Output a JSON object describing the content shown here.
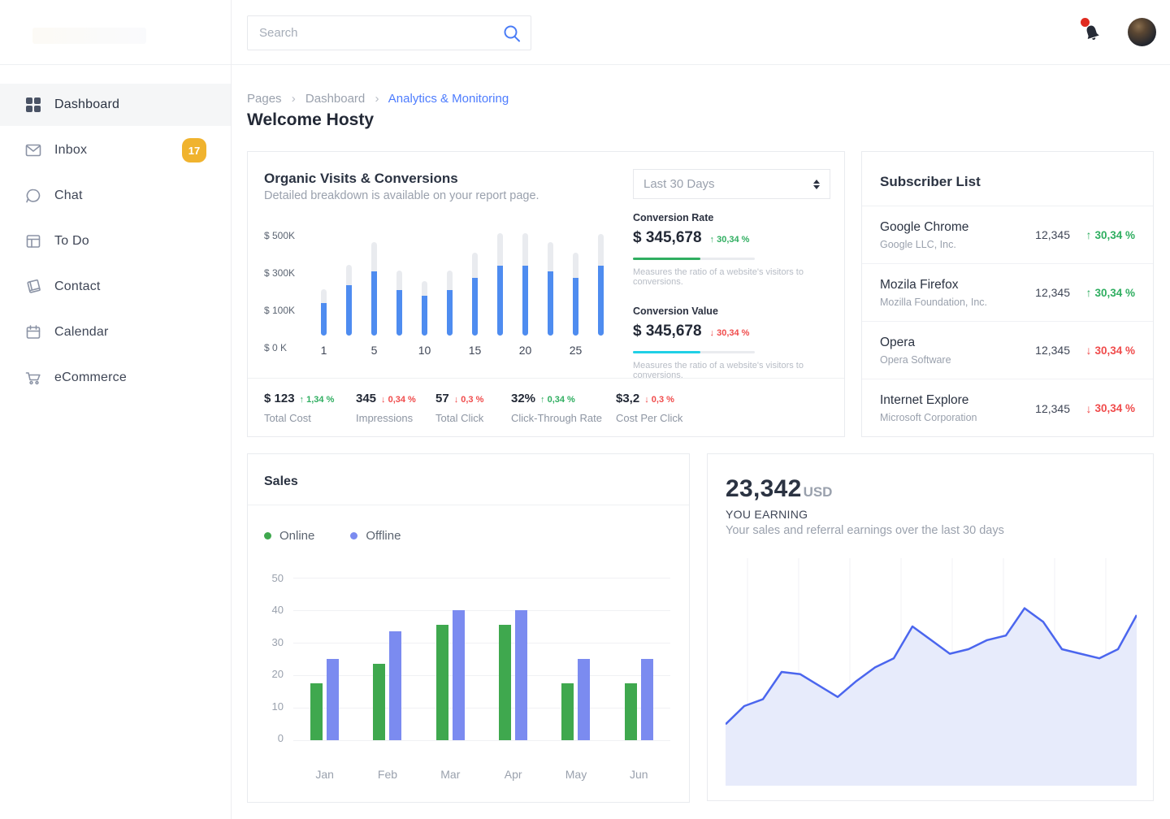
{
  "colors": {
    "accent": "#4d7cfe",
    "positive": "#2fae60",
    "negative": "#f04b4b",
    "badge": "#f0b32e"
  },
  "sidebar": {
    "items": [
      {
        "label": "Dashboard",
        "icon": "grid-icon",
        "active": true
      },
      {
        "label": "Inbox",
        "icon": "mail-icon",
        "badge": "17",
        "badge_color": "#f0b32e"
      },
      {
        "label": "Chat",
        "icon": "chat-icon"
      },
      {
        "label": "To Do",
        "icon": "todo-icon"
      },
      {
        "label": "Contact",
        "icon": "contact-icon"
      },
      {
        "label": "Calendar",
        "icon": "calendar-icon"
      },
      {
        "label": "eCommerce",
        "icon": "cart-icon"
      }
    ]
  },
  "header": {
    "search_placeholder": "Search"
  },
  "breadcrumb": {
    "items": [
      "Pages",
      "Dashboard"
    ],
    "separator": "›",
    "current": "Analytics & Monitoring"
  },
  "page": {
    "welcome": "Welcome Hosty"
  },
  "organic": {
    "title": "Organic Visits & Conversions",
    "subtitle": "Detailed breakdown is available on your report page.",
    "range_selected": "Last 30 Days",
    "conversion_rate": {
      "label": "Conversion Rate",
      "value": "$ 345,678",
      "arrow": "↑",
      "delta": "30,34 %",
      "direction": "up",
      "progress": "55%",
      "bar_color": "#2fae60",
      "caption": "Measures the ratio of a website's visitors to conversions."
    },
    "conversion_value": {
      "label": "Conversion Value",
      "value": "$ 345,678",
      "arrow": "↓",
      "delta": "30,34 %",
      "direction": "down",
      "progress": "55%",
      "bar_color": "#20d0e6",
      "caption": "Measures the ratio of a website's visitors to conversions."
    },
    "stats": [
      {
        "value": "$ 123",
        "arrow": "↑",
        "delta": "1,34 %",
        "direction": "up",
        "label": "Total Cost"
      },
      {
        "value": "345",
        "arrow": "↓",
        "delta": "0,34 %",
        "direction": "down",
        "label": "Impressions"
      },
      {
        "value": "57",
        "arrow": "↓",
        "delta": "0,3 %",
        "direction": "down",
        "label": "Total Click"
      },
      {
        "value": "32%",
        "arrow": "↑",
        "delta": "0,34 %",
        "direction": "up",
        "label": "Click-Through Rate"
      },
      {
        "value": "$3,2",
        "arrow": "↓",
        "delta": "0,3 %",
        "direction": "down",
        "label": "Cost Per Click"
      }
    ]
  },
  "subscribers": {
    "title": "Subscriber List",
    "rows": [
      {
        "name": "Google Chrome",
        "company": "Google LLC, Inc.",
        "count": "12,345",
        "arrow": "↑",
        "delta": "30,34 %",
        "direction": "up"
      },
      {
        "name": "Mozila Firefox",
        "company": "Mozilla Foundation, Inc.",
        "count": "12,345",
        "arrow": "↑",
        "delta": "30,34 %",
        "direction": "up"
      },
      {
        "name": "Opera",
        "company": "Opera Software",
        "count": "12,345",
        "arrow": "↓",
        "delta": "30,34 %",
        "direction": "down"
      },
      {
        "name": "Internet Explore",
        "company": "Microsoft Corporation",
        "count": "12,345",
        "arrow": "↓",
        "delta": "30,34 %",
        "direction": "down"
      }
    ]
  },
  "sales": {
    "title": "Sales",
    "legend": [
      {
        "label": "Online",
        "color": "#3fa84e"
      },
      {
        "label": "Offline",
        "color": "#7b8bf0"
      }
    ]
  },
  "earnings": {
    "amount": "23,342",
    "currency": "USD",
    "label": "YOU EARNING",
    "subtitle": "Your sales and referral earnings over the last 30 days"
  },
  "chart_data": [
    {
      "type": "bar",
      "name": "organic-visits-conversions",
      "title": "Organic Visits & Conversions",
      "x_labels": [
        "1",
        "",
        "5",
        "",
        "10",
        "",
        "15",
        "",
        "20",
        "",
        "25",
        ""
      ],
      "series": [
        {
          "name": "visits-total",
          "color": "#e9ebef",
          "values": [
            230,
            350,
            460,
            320,
            270,
            320,
            410,
            505,
            505,
            460,
            410,
            500
          ]
        },
        {
          "name": "conversions",
          "color": "#4e8cf0",
          "values": [
            160,
            250,
            315,
            225,
            195,
            225,
            285,
            345,
            345,
            315,
            285,
            345
          ]
        }
      ],
      "unit": "K USD",
      "ylim": [
        0,
        520
      ],
      "yticks": [
        "$ 500K",
        "$ 300K",
        "$ 100K",
        "$ 0 K"
      ],
      "grid": false
    },
    {
      "type": "bar",
      "name": "sales-by-month",
      "categories": [
        "Jan",
        "Feb",
        "Mar",
        "Apr",
        "May",
        "Jun"
      ],
      "series": [
        {
          "name": "Online",
          "color": "#3fa84e",
          "values": [
            17.5,
            23.5,
            35.5,
            35.5,
            17.5,
            17.5
          ]
        },
        {
          "name": "Offline",
          "color": "#7b8bf0",
          "values": [
            25,
            33.5,
            40,
            40,
            25,
            25
          ]
        }
      ],
      "ylim": [
        0,
        50
      ],
      "yticks": [
        "50",
        "40",
        "30",
        "20",
        "10",
        "0"
      ],
      "grid": "horizontal",
      "legend_position": "top"
    },
    {
      "type": "area",
      "name": "earnings-trend",
      "values": [
        27,
        35,
        38,
        50,
        49,
        44,
        39,
        46,
        52,
        56,
        70,
        64,
        58,
        60,
        64,
        66,
        78,
        72,
        60,
        58,
        56,
        60,
        75
      ],
      "ylim": [
        0,
        100
      ],
      "line_color": "#4b66ee",
      "fill_color": "#e7ebfb",
      "grid": "vertical",
      "gridline_count": 8,
      "axis_labels": false
    }
  ]
}
